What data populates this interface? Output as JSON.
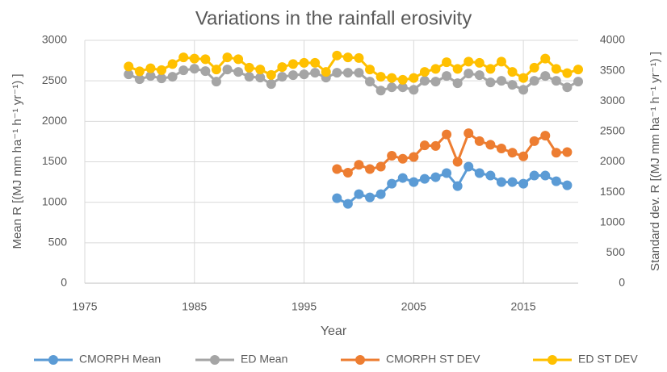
{
  "chart_data": {
    "type": "line",
    "title": "Variations in the rainfall erosivity",
    "xlabel": "Year",
    "ylabel": "Mean R [(MJ mm ha⁻¹ h⁻¹ yr⁻¹) ]",
    "y2label": "Standard dev. R [(MJ mm ha⁻¹ h⁻¹ yr⁻¹) ]",
    "xlim": [
      1975,
      2020
    ],
    "xticks": [
      1975,
      1985,
      1995,
      2005,
      2015
    ],
    "ylim": [
      0,
      3000
    ],
    "yticks": [
      0,
      500,
      1000,
      1500,
      2000,
      2500,
      3000
    ],
    "y2lim": [
      0,
      4000
    ],
    "y2ticks": [
      0,
      500,
      1000,
      1500,
      2000,
      2500,
      3000,
      3500,
      4000
    ],
    "grid": true,
    "legend": "bottom",
    "series": [
      {
        "name": "CMORPH Mean",
        "color": "#5b9bd5",
        "axis": "y",
        "x": [
          1998,
          1999,
          2000,
          2001,
          2002,
          2003,
          2004,
          2005,
          2006,
          2007,
          2008,
          2009,
          2010,
          2011,
          2012,
          2013,
          2014,
          2015,
          2016,
          2017,
          2018,
          2019
        ],
        "values": [
          1050,
          980,
          1100,
          1060,
          1100,
          1230,
          1300,
          1250,
          1290,
          1310,
          1360,
          1200,
          1440,
          1360,
          1330,
          1250,
          1250,
          1230,
          1330,
          1330,
          1260,
          1210
        ]
      },
      {
        "name": "ED Mean",
        "color": "#a5a5a5",
        "axis": "y",
        "x": [
          1979,
          1980,
          1981,
          1982,
          1983,
          1984,
          1985,
          1986,
          1987,
          1988,
          1989,
          1990,
          1991,
          1992,
          1993,
          1994,
          1995,
          1996,
          1997,
          1998,
          1999,
          2000,
          2001,
          2002,
          2003,
          2004,
          2005,
          2006,
          2007,
          2008,
          2009,
          2010,
          2011,
          2012,
          2013,
          2014,
          2015,
          2016,
          2017,
          2018,
          2019,
          2020
        ],
        "values": [
          2580,
          2520,
          2560,
          2530,
          2550,
          2630,
          2650,
          2620,
          2490,
          2640,
          2610,
          2550,
          2540,
          2460,
          2550,
          2570,
          2580,
          2600,
          2540,
          2600,
          2600,
          2600,
          2490,
          2380,
          2420,
          2420,
          2390,
          2500,
          2490,
          2560,
          2470,
          2590,
          2570,
          2480,
          2500,
          2450,
          2390,
          2500,
          2560,
          2500,
          2420,
          2490
        ]
      },
      {
        "name": "CMORPH ST DEV",
        "color": "#ed7d31",
        "axis": "y2",
        "x": [
          1998,
          1999,
          2000,
          2001,
          2002,
          2003,
          2004,
          2005,
          2006,
          2007,
          2008,
          2009,
          2010,
          2011,
          2012,
          2013,
          2014,
          2015,
          2016,
          2017,
          2018,
          2019
        ],
        "values": [
          1880,
          1820,
          1950,
          1880,
          1920,
          2100,
          2050,
          2080,
          2270,
          2260,
          2450,
          2000,
          2470,
          2340,
          2280,
          2220,
          2150,
          2090,
          2340,
          2430,
          2150,
          2160
        ]
      },
      {
        "name": "ED ST DEV",
        "color": "#ffc000",
        "axis": "y2",
        "x": [
          1979,
          1980,
          1981,
          1982,
          1983,
          1984,
          1985,
          1986,
          1987,
          1988,
          1989,
          1990,
          1991,
          1992,
          1993,
          1994,
          1995,
          1996,
          1997,
          1998,
          1999,
          2000,
          2001,
          2002,
          2003,
          2004,
          2005,
          2006,
          2007,
          2008,
          2009,
          2010,
          2011,
          2012,
          2013,
          2014,
          2015,
          2016,
          2017,
          2018,
          2019,
          2020
        ],
        "values": [
          3570,
          3490,
          3540,
          3510,
          3610,
          3720,
          3700,
          3690,
          3520,
          3720,
          3690,
          3550,
          3520,
          3430,
          3560,
          3610,
          3630,
          3630,
          3480,
          3750,
          3720,
          3710,
          3520,
          3400,
          3380,
          3350,
          3380,
          3480,
          3530,
          3640,
          3530,
          3650,
          3630,
          3530,
          3650,
          3480,
          3380,
          3550,
          3700,
          3530,
          3460,
          3520
        ]
      }
    ]
  }
}
